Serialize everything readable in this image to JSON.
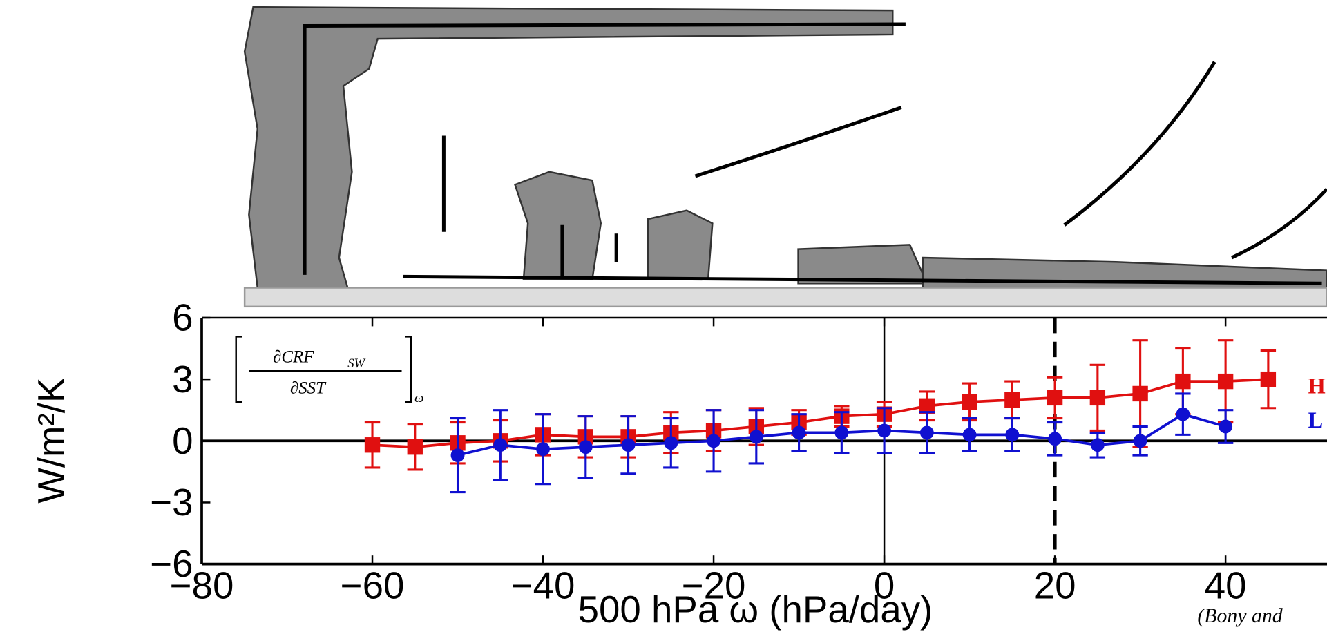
{
  "chart_data": {
    "type": "errorbar-line",
    "x_label": "500 hPa ω (hPa/day)",
    "y_label": "W/m²/K",
    "annotations": {
      "numerator": "∂CRF",
      "numerator_sub": "SW",
      "denominator": "∂SST",
      "outer_sub": "ω",
      "citation": "(Bony and"
    },
    "xlim": [
      -80,
      60
    ],
    "ylim": [
      -6,
      6
    ],
    "xticks": [
      {
        "value": -80,
        "label": "−80"
      },
      {
        "value": -60,
        "label": "−60"
      },
      {
        "value": -40,
        "label": "−40"
      },
      {
        "value": -20,
        "label": "−20"
      },
      0,
      20,
      40
    ],
    "yticks": [
      {
        "value": -6,
        "label": "−6"
      },
      {
        "value": -3,
        "label": "−3"
      },
      0,
      3,
      6
    ],
    "vlines": [
      {
        "x": 0,
        "style": "solid"
      },
      {
        "x": 20,
        "style": "dashed"
      }
    ],
    "hline": 0,
    "series": [
      {
        "name": "H",
        "color": "#e01010",
        "marker": "square",
        "x": [
          -60,
          -55,
          -50,
          -45,
          -40,
          -35,
          -30,
          -25,
          -20,
          -15,
          -10,
          -5,
          0,
          5,
          10,
          15,
          20,
          25,
          30,
          35,
          40,
          45
        ],
        "values": [
          -0.2,
          -0.3,
          -0.1,
          0,
          0.3,
          0.2,
          0.2,
          0.4,
          0.5,
          0.7,
          0.9,
          1.2,
          1.3,
          1.7,
          1.9,
          2.0,
          2.1,
          2.1,
          2.3,
          2.9,
          2.9,
          3.0
        ],
        "errors": [
          1.1,
          1.1,
          1.0,
          1.0,
          1.0,
          1.0,
          1.0,
          1.0,
          1.0,
          0.9,
          0.6,
          0.5,
          0.6,
          0.7,
          0.9,
          0.9,
          1.0,
          1.6,
          2.6,
          1.6,
          2.0,
          1.4
        ]
      },
      {
        "name": "L",
        "color": "#1010d0",
        "marker": "circle",
        "x": [
          -50,
          -45,
          -40,
          -35,
          -30,
          -25,
          -20,
          -15,
          -10,
          -5,
          0,
          5,
          10,
          15,
          20,
          25,
          30,
          35,
          40
        ],
        "values": [
          -0.7,
          -0.2,
          -0.4,
          -0.3,
          -0.2,
          -0.1,
          0,
          0.2,
          0.4,
          0.4,
          0.5,
          0.4,
          0.3,
          0.3,
          0.1,
          -0.2,
          0,
          1.3,
          0.7
        ],
        "errors": [
          1.8,
          1.7,
          1.7,
          1.5,
          1.4,
          1.2,
          1.5,
          1.3,
          0.9,
          1.0,
          1.1,
          1.0,
          0.8,
          0.8,
          0.8,
          0.6,
          0.7,
          1.0,
          0.8
        ]
      }
    ]
  }
}
